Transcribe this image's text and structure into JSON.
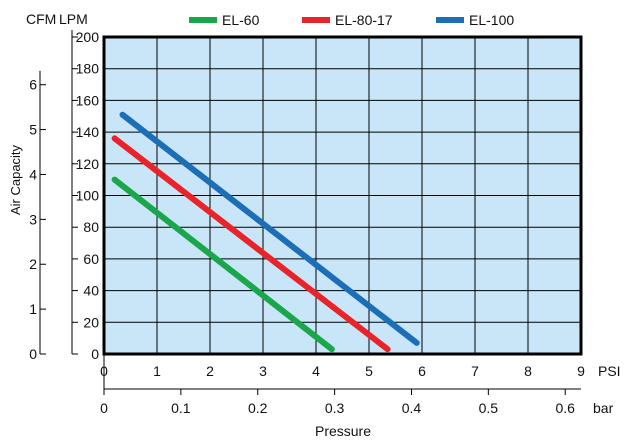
{
  "chart_data": {
    "type": "line",
    "legend": {
      "placement": "top",
      "entries": [
        {
          "name": "EL-60",
          "color": "#1aa64b"
        },
        {
          "name": "EL-80-17",
          "color": "#e8232a"
        },
        {
          "name": "EL-100",
          "color": "#1c6fb6"
        }
      ]
    },
    "series": [
      {
        "name": "EL-60",
        "color": "#1aa64b",
        "x": [
          0.2,
          4.3
        ],
        "y": [
          110,
          3
        ]
      },
      {
        "name": "EL-80-17",
        "color": "#e8232a",
        "x": [
          0.2,
          5.35
        ],
        "y": [
          136,
          3
        ]
      },
      {
        "name": "EL-100",
        "color": "#1c6fb6",
        "x": [
          0.35,
          5.9
        ],
        "y": [
          151,
          7
        ]
      }
    ],
    "x_axis_primary": {
      "unit": "PSI",
      "range": [
        0,
        9
      ],
      "ticks": [
        "0",
        "1",
        "2",
        "3",
        "4",
        "5",
        "6",
        "7",
        "8",
        "9"
      ]
    },
    "x_axis_secondary": {
      "unit": "bar",
      "ticks": [
        {
          "value": 0,
          "label": "0"
        },
        {
          "value": 0.1,
          "label": "0.1"
        },
        {
          "value": 0.2,
          "label": "0.2"
        },
        {
          "value": 0.3,
          "label": "0.3"
        },
        {
          "value": 0.4,
          "label": "0.4"
        },
        {
          "value": 0.5,
          "label": "0.5"
        },
        {
          "value": 0.6,
          "label": "0.6"
        }
      ]
    },
    "xlabel": "Pressure",
    "y_axis_primary": {
      "unit": "LPM",
      "range": [
        0,
        200
      ],
      "ticks": [
        "0",
        "20",
        "40",
        "60",
        "80",
        "100",
        "120",
        "140",
        "160",
        "180",
        "200"
      ]
    },
    "y_axis_secondary": {
      "unit": "CFM",
      "ticks": [
        {
          "value": 0,
          "label": "0"
        },
        {
          "value": 1,
          "label": "1"
        },
        {
          "value": 2,
          "label": "2"
        },
        {
          "value": 3,
          "label": "3"
        },
        {
          "value": 4,
          "label": "4"
        },
        {
          "value": 5,
          "label": "5"
        },
        {
          "value": 6,
          "label": "6"
        }
      ]
    },
    "ylabel": "Air Capacity",
    "grid": true,
    "plot_background": "#c8e6f7"
  }
}
